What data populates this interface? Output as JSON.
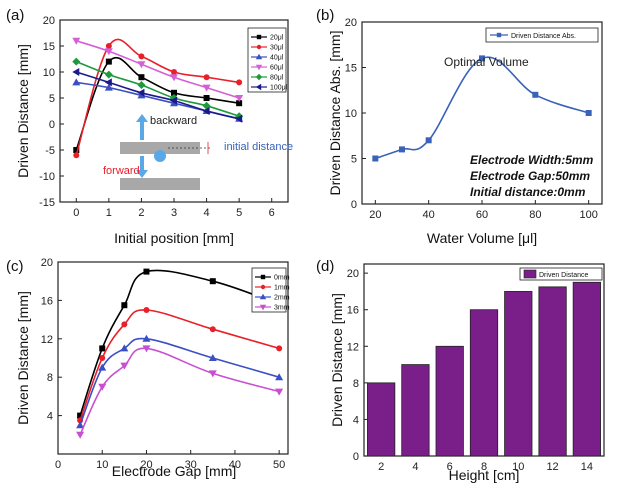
{
  "chart_data": [
    {
      "panel_label": "(a)",
      "type": "line",
      "xlabel": "Initial position [mm]",
      "ylabel": "Driven Distance [mm]",
      "xlim": [
        -0.5,
        6.5
      ],
      "ylim": [
        -15,
        20
      ],
      "xticks": [
        0,
        1,
        2,
        3,
        4,
        5,
        6
      ],
      "yticks": [
        -15,
        -10,
        -5,
        0,
        5,
        10,
        15,
        20
      ],
      "legend_position": "top-right",
      "x": [
        0,
        1,
        2,
        3,
        4,
        5
      ],
      "series": [
        {
          "name": "20μl",
          "color": "#000000",
          "marker": "square",
          "values": [
            -5,
            12,
            9,
            6,
            5,
            4
          ]
        },
        {
          "name": "30μl",
          "color": "#e8202a",
          "marker": "circle",
          "values": [
            -6,
            15,
            13,
            10,
            9,
            8
          ]
        },
        {
          "name": "40μl",
          "color": "#3b4fc4",
          "marker": "triangle-up",
          "values": [
            8,
            7,
            5.5,
            4,
            2.5,
            1
          ]
        },
        {
          "name": "60μl",
          "color": "#d45fd8",
          "marker": "triangle-down",
          "values": [
            16,
            14,
            11.5,
            9,
            7,
            5
          ]
        },
        {
          "name": "80μl",
          "color": "#1e9a3c",
          "marker": "diamond",
          "values": [
            12,
            9.5,
            7.5,
            5,
            3.5,
            1.5
          ]
        },
        {
          "name": "100μl",
          "color": "#1a1a8c",
          "marker": "triangle-left",
          "values": [
            10,
            8,
            6,
            4.5,
            2.5,
            1
          ]
        }
      ],
      "annotations": {
        "backward": "backward",
        "forward": "forward",
        "initial_distance": "initial distance"
      }
    },
    {
      "panel_label": "(b)",
      "type": "line",
      "xlabel": "Water Volume [μl]",
      "ylabel": "Driven Distance Abs. [mm]",
      "xlim": [
        15,
        105
      ],
      "ylim": [
        0,
        20
      ],
      "xticks": [
        20,
        40,
        60,
        80,
        100
      ],
      "yticks": [
        0,
        5,
        10,
        15,
        20
      ],
      "legend_position": "top-right",
      "x": [
        20,
        30,
        40,
        60,
        80,
        100
      ],
      "series": [
        {
          "name": "Driven Distance Abs.",
          "color": "#3a62b8",
          "marker": "square",
          "values": [
            5,
            6,
            7,
            16,
            12,
            10
          ]
        }
      ],
      "annotations": {
        "peak": "Optimal Volume",
        "conditions": [
          "Electrode Width:5mm",
          "Electrode Gap:50mm",
          "Initial distance:0mm"
        ]
      }
    },
    {
      "panel_label": "(c)",
      "type": "line",
      "xlabel": "Electrode Gap [mm]",
      "ylabel": "Driven Distance [mm]",
      "xlim": [
        0,
        52
      ],
      "ylim": [
        0,
        20
      ],
      "xticks": [
        0,
        10,
        20,
        30,
        40,
        50
      ],
      "yticks": [
        4,
        8,
        12,
        16,
        20
      ],
      "legend_position": "top-right",
      "x": [
        5,
        10,
        15,
        20,
        35,
        50
      ],
      "series": [
        {
          "name": "0mm",
          "color": "#000000",
          "marker": "square",
          "values": [
            4,
            11,
            15.5,
            19,
            18,
            15.6
          ]
        },
        {
          "name": "1mm",
          "color": "#e8202a",
          "marker": "circle",
          "values": [
            3.5,
            10,
            13.5,
            15,
            13,
            11
          ]
        },
        {
          "name": "2mm",
          "color": "#3b4fc4",
          "marker": "triangle-up",
          "values": [
            3,
            9,
            11,
            12,
            10,
            8
          ]
        },
        {
          "name": "3mm",
          "color": "#c94fd0",
          "marker": "triangle-down",
          "values": [
            2,
            7,
            9.2,
            11,
            8.4,
            6.5
          ]
        }
      ]
    },
    {
      "panel_label": "(d)",
      "type": "bar",
      "xlabel": "Height [cm]",
      "ylabel": "Driven Distance [mm]",
      "ylim": [
        0,
        21
      ],
      "yticks": [
        0,
        4,
        8,
        12,
        16,
        20
      ],
      "categories": [
        "2",
        "4",
        "6",
        "8",
        "10",
        "12",
        "14"
      ],
      "legend_position": "top-right",
      "series": [
        {
          "name": "Driven Distance",
          "color": "#7a1f8a",
          "values": [
            8,
            10,
            12,
            16,
            18,
            18.5,
            19
          ]
        }
      ]
    }
  ]
}
